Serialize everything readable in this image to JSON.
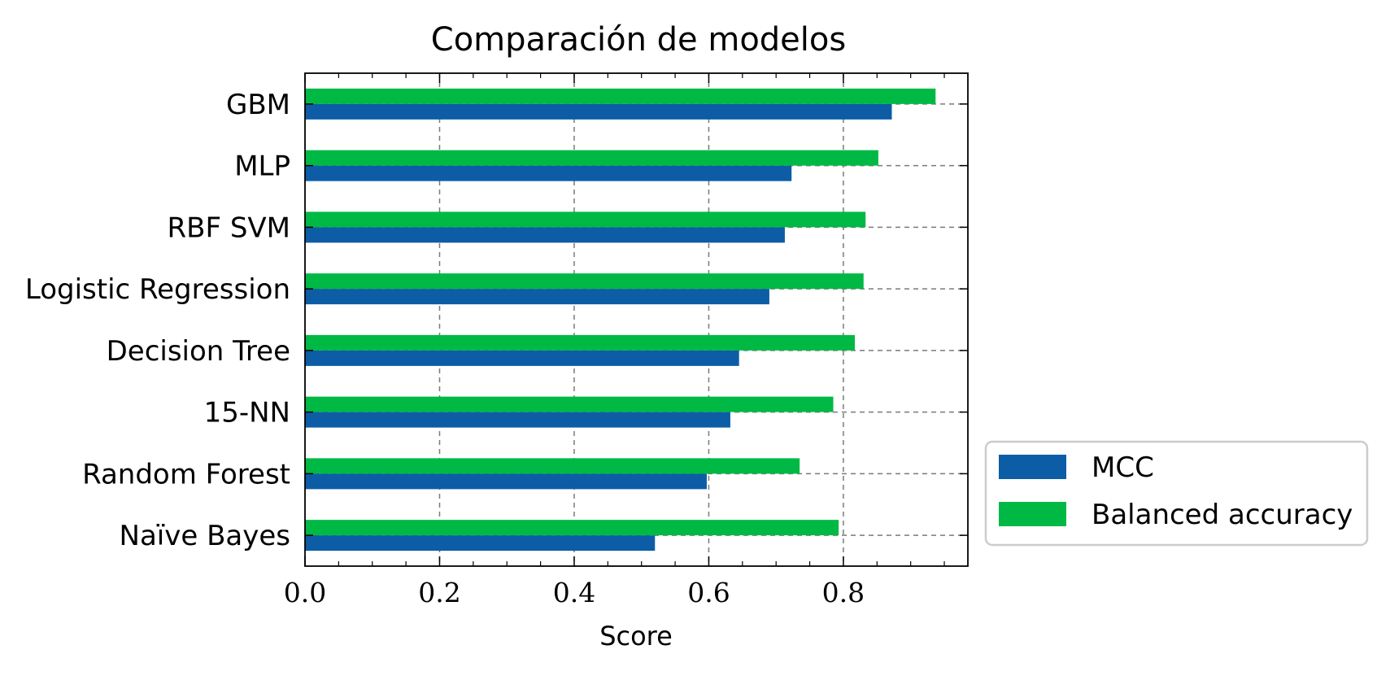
{
  "chart_data": {
    "type": "bar",
    "orientation": "horizontal",
    "title": "Comparación de modelos",
    "xlabel": "Score",
    "ylabel": "",
    "categories": [
      "Naïve Bayes",
      "Random Forest",
      "15-NN",
      "Decision Tree",
      "Logistic Regression",
      "RBF SVM",
      "MLP",
      "GBM"
    ],
    "series": [
      {
        "name": "MCC",
        "color": "#0C5DA5",
        "values": [
          0.52,
          0.597,
          0.632,
          0.645,
          0.69,
          0.713,
          0.723,
          0.872
        ]
      },
      {
        "name": "Balanced accuracy",
        "color": "#00B945",
        "values": [
          0.793,
          0.735,
          0.785,
          0.817,
          0.83,
          0.833,
          0.852,
          0.937
        ]
      }
    ],
    "xlim": [
      0.0,
      0.985
    ],
    "xticks": [
      "0.0",
      "0.2",
      "0.4",
      "0.6",
      "0.8"
    ],
    "grid": true,
    "legend_position": "outside-right-bottom"
  }
}
